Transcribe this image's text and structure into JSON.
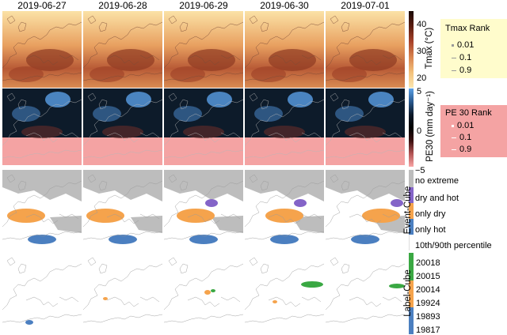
{
  "dates": [
    "2019-06-27",
    "2019-06-28",
    "2019-06-29",
    "2019-06-30",
    "2019-07-01"
  ],
  "rows": [
    "Tmax",
    "PE30",
    "Event-Cube",
    "Label-Cube"
  ],
  "tmax": {
    "axis_label": "Tmax (°C)",
    "ticks": [
      "40",
      "30",
      "20"
    ],
    "rank_title": "Tmax Rank",
    "rank_values": [
      "0.01",
      "0.1",
      "0.9"
    ],
    "rank_bg": "#fffccc"
  },
  "pe30": {
    "axis_label": "PE30 (mm day⁻¹)",
    "ticks": [
      "5",
      "0",
      "−5"
    ],
    "rank_title": "PE 30 Rank",
    "rank_values": [
      "0.01",
      "0.1",
      "0.9"
    ],
    "rank_bg": "#f4a3a3"
  },
  "event_cube": {
    "axis_label": "Event-Cube",
    "categories": [
      "no extreme",
      "dry and hot",
      "only dry",
      "only hot",
      "10th/90th percentile"
    ],
    "colors": {
      "no_extreme": "#bdbdbd",
      "dry_and_hot": "#8464c8",
      "only_dry": "#f5a34c",
      "only_hot": "#4b7fc0",
      "percentile": "#ffffff"
    }
  },
  "label_cube": {
    "axis_label": "Label-Cube",
    "labels": [
      "20018",
      "20015",
      "20014",
      "19924",
      "19893",
      "19817"
    ],
    "colors": [
      "#3aa843",
      "#3aa843",
      "#f5a34c",
      "#f5a34c",
      "#4b7fc0",
      "#4b7fc0"
    ]
  }
}
